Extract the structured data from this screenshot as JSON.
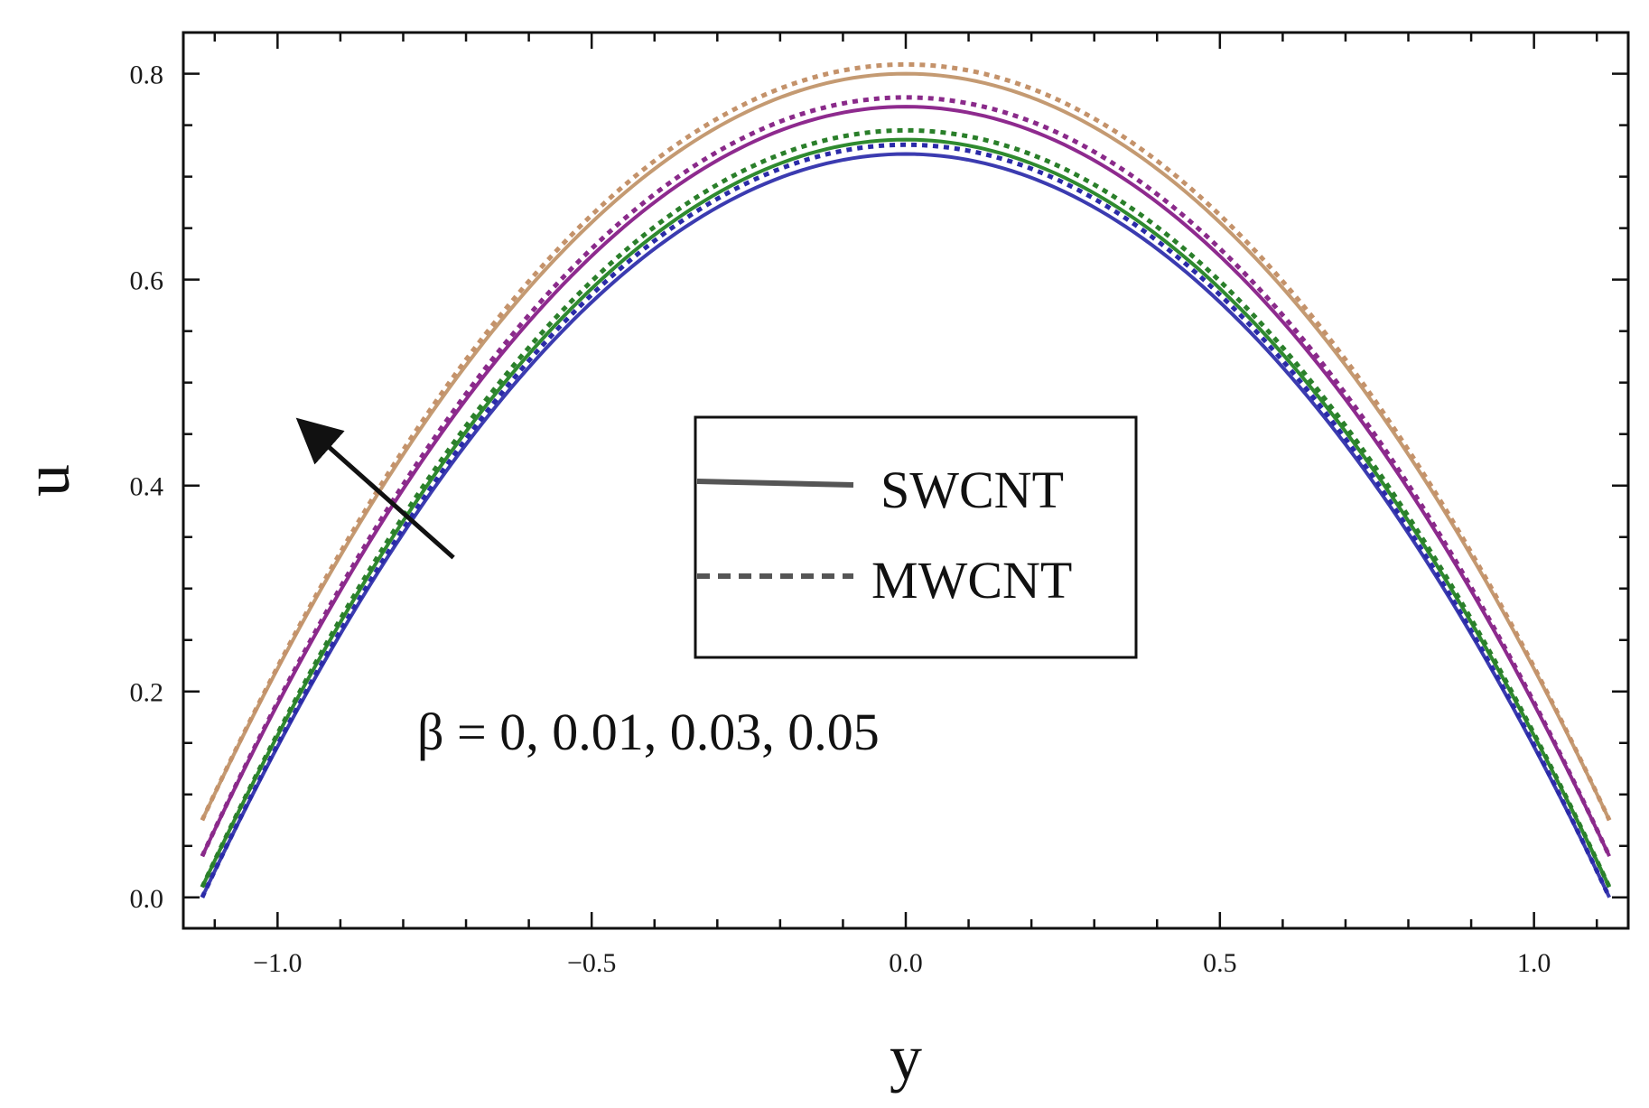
{
  "chart_data": {
    "type": "line",
    "xlabel": "y",
    "ylabel": "u",
    "xlim": [
      -1.15,
      1.15
    ],
    "ylim": [
      -0.03,
      0.84
    ],
    "x_ticks": [
      {
        "value": -1.0,
        "label": "−1.0"
      },
      {
        "value": -0.5,
        "label": "−0.5"
      },
      {
        "value": 0.0,
        "label": "0.0"
      },
      {
        "value": 0.5,
        "label": "0.5"
      },
      {
        "value": 1.0,
        "label": "1.0"
      }
    ],
    "y_ticks": [
      {
        "value": 0.0,
        "label": "0.0"
      },
      {
        "value": 0.2,
        "label": "0.2"
      },
      {
        "value": 0.4,
        "label": "0.4"
      },
      {
        "value": 0.6,
        "label": "0.6"
      },
      {
        "value": 0.8,
        "label": "0.8"
      }
    ],
    "x_minor_step": 0.1,
    "y_minor_step": 0.05,
    "x_domain": [
      -1.12,
      1.12
    ],
    "grid": false,
    "legend": {
      "placement": "center-right",
      "entries": [
        {
          "label": "SWCNT",
          "style": "solid"
        },
        {
          "label": "MWCNT",
          "style": "dashed"
        }
      ]
    },
    "annotation": {
      "text": "β = 0, 0.01, 0.03, 0.05",
      "arrow_from": [
        -0.72,
        0.33
      ],
      "arrow_to": [
        -0.96,
        0.46
      ]
    },
    "series": [
      {
        "style": "solid",
        "color": "#3b3bb0",
        "peak": 0.722,
        "edge": 0.0
      },
      {
        "style": "dashed",
        "color": "#2a2aa8",
        "peak": 0.731,
        "edge": 0.0
      },
      {
        "style": "solid",
        "color": "#2f8a2f",
        "peak": 0.736,
        "edge": 0.01
      },
      {
        "style": "dashed",
        "color": "#2a7f2a",
        "peak": 0.745,
        "edge": 0.01
      },
      {
        "style": "solid",
        "color": "#8e2a8e",
        "peak": 0.768,
        "edge": 0.04
      },
      {
        "style": "dashed",
        "color": "#8a2a8a",
        "peak": 0.777,
        "edge": 0.04
      },
      {
        "style": "solid",
        "color": "#c49a72",
        "peak": 0.8,
        "edge": 0.075
      },
      {
        "style": "dashed",
        "color": "#c4926a",
        "peak": 0.809,
        "edge": 0.075
      }
    ]
  }
}
